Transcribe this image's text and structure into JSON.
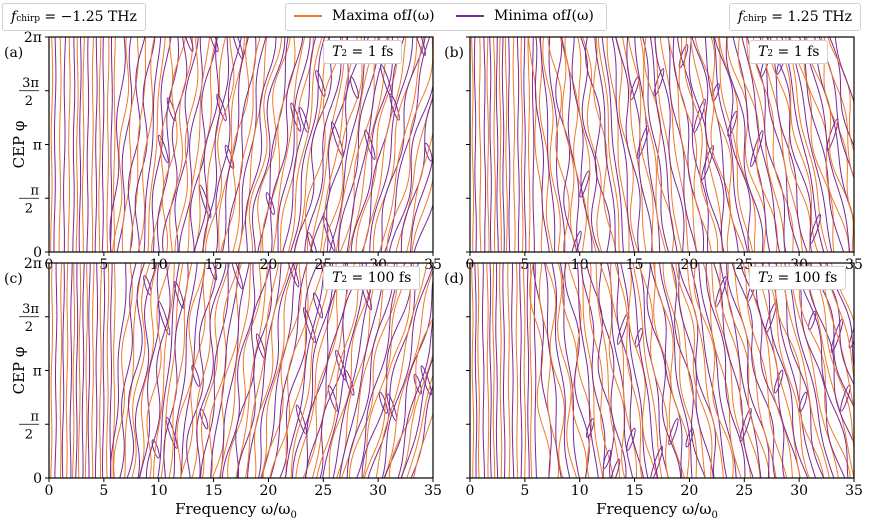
{
  "colors": {
    "maxima": "#f07a2a",
    "minima": "#7a2894",
    "axis": "#000000"
  },
  "legend": {
    "maxima": {
      "prefix": "Maxima of ",
      "italic": "I",
      "suffix": "(ω)"
    },
    "minima": {
      "prefix": "Minima of ",
      "italic": "I",
      "suffix": "(ω)"
    }
  },
  "chirp_left": {
    "symbol": "f",
    "sub": "chirp",
    "rest": " = −1.25 THz"
  },
  "chirp_right": {
    "symbol": "f",
    "sub": "chirp",
    "rest": " = 1.25 THz"
  },
  "xlabel": "Frequency ω/ω",
  "xlabel_sub": "0",
  "ylabel": "CEP φ",
  "chart_data": [
    {
      "panel": "(a)",
      "type": "contour",
      "annotation": {
        "symbol": "T",
        "sub": "2",
        "rest": " = 1 fs"
      },
      "xlim": [
        0,
        35
      ],
      "ylim": [
        0,
        6.2832
      ],
      "xticks": [
        "0",
        "5",
        "10",
        "15",
        "20",
        "25",
        "30",
        "35"
      ],
      "yticks": [
        "0",
        "π/2",
        "π",
        "3π/2",
        "2π"
      ],
      "chirp_sign": -1
    },
    {
      "panel": "(b)",
      "type": "contour",
      "annotation": {
        "symbol": "T",
        "sub": "2",
        "rest": " = 1 fs"
      },
      "xlim": [
        0,
        35
      ],
      "ylim": [
        0,
        6.2832
      ],
      "xticks": [
        "0",
        "5",
        "10",
        "15",
        "20",
        "25",
        "30",
        "35"
      ],
      "yticks": [
        "0",
        "π/2",
        "π",
        "3π/2",
        "2π"
      ],
      "chirp_sign": 1
    },
    {
      "panel": "(c)",
      "type": "contour",
      "annotation": {
        "symbol": "T",
        "sub": "2",
        "rest": " = 100 fs"
      },
      "xlim": [
        0,
        35
      ],
      "ylim": [
        0,
        6.2832
      ],
      "xticks": [
        "0",
        "5",
        "10",
        "15",
        "20",
        "25",
        "30",
        "35"
      ],
      "yticks": [
        "0",
        "π/2",
        "π",
        "3π/2",
        "2π"
      ],
      "chirp_sign": -1
    },
    {
      "panel": "(d)",
      "type": "contour",
      "annotation": {
        "symbol": "T",
        "sub": "2",
        "rest": " = 100 fs"
      },
      "xlim": [
        0,
        35
      ],
      "ylim": [
        0,
        6.2832
      ],
      "xticks": [
        "0",
        "5",
        "10",
        "15",
        "20",
        "25",
        "30",
        "35"
      ],
      "yticks": [
        "0",
        "π/2",
        "π",
        "3π/2",
        "2π"
      ],
      "chirp_sign": 1
    }
  ]
}
